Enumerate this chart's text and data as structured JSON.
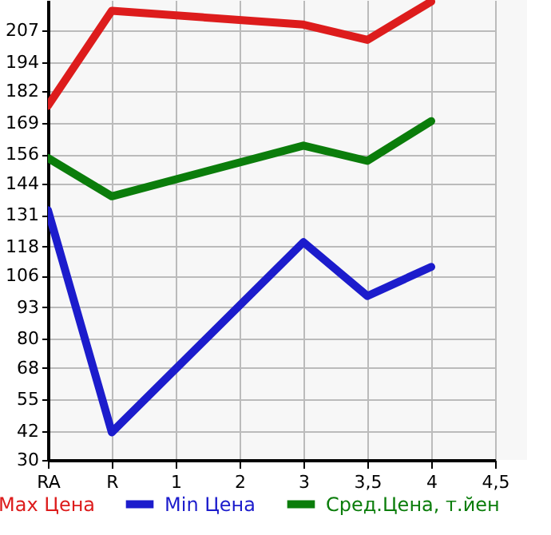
{
  "chart_data": {
    "type": "line",
    "categories": [
      "RA",
      "R",
      "1",
      "2",
      "3",
      "3,5",
      "4",
      "4,5"
    ],
    "series": [
      {
        "name": "Max Цена",
        "color": "#dd1c1c",
        "values": [
          176,
          215.2,
          null,
          null,
          209.5,
          203.2,
          219,
          null
        ]
      },
      {
        "name": "Min Цена",
        "color": "#1c1ccc",
        "values": [
          133,
          41.4,
          null,
          null,
          119.8,
          97.6,
          109.6,
          null
        ]
      },
      {
        "name": "Сред.Цена, т.йен",
        "color": "#0b7d0b",
        "values": [
          154.5,
          138.7,
          null,
          null,
          159.6,
          153.3,
          169.7,
          null
        ]
      }
    ],
    "ylim": [
      30,
      219.64
    ],
    "yticks": [
      30,
      42,
      55,
      68,
      80,
      93,
      106,
      118,
      131,
      144,
      156,
      169,
      182,
      194,
      207
    ],
    "grid": true,
    "legend": "bottom",
    "marker": "none",
    "line_style": "solid"
  }
}
